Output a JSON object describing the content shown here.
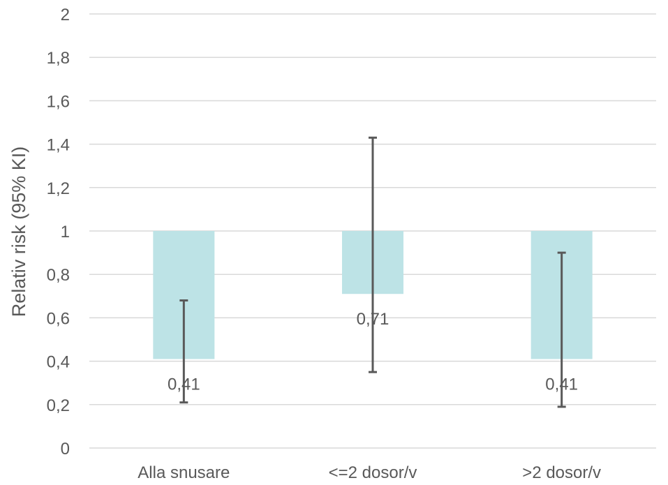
{
  "chart_data": {
    "type": "bar",
    "title": "",
    "xlabel": "",
    "ylabel": "Relativ risk (95% KI)",
    "categories": [
      "Alla snusare",
      "<=2 dosor/v",
      ">2 dosor/v"
    ],
    "baseline": 1,
    "values": [
      0.41,
      0.71,
      0.41
    ],
    "value_labels": [
      "0,41",
      "0,71",
      "0,41"
    ],
    "ci_lower": [
      0.21,
      0.35,
      0.19
    ],
    "ci_upper": [
      0.68,
      1.43,
      0.9
    ],
    "ylim": [
      0,
      2
    ],
    "yticks": [
      0,
      0.2,
      0.4,
      0.6,
      0.8,
      1,
      1.2,
      1.4,
      1.6,
      1.8,
      2
    ],
    "ytick_labels": [
      "0",
      "0,2",
      "0,4",
      "0,6",
      "0,8",
      "1",
      "1,2",
      "1,4",
      "1,6",
      "1,8",
      "2"
    ],
    "grid": true,
    "legend": "none",
    "colors": {
      "bar": "#bde3e6",
      "error_bar": "#595959",
      "grid": "#d9d9d9",
      "text": "#595959"
    }
  }
}
